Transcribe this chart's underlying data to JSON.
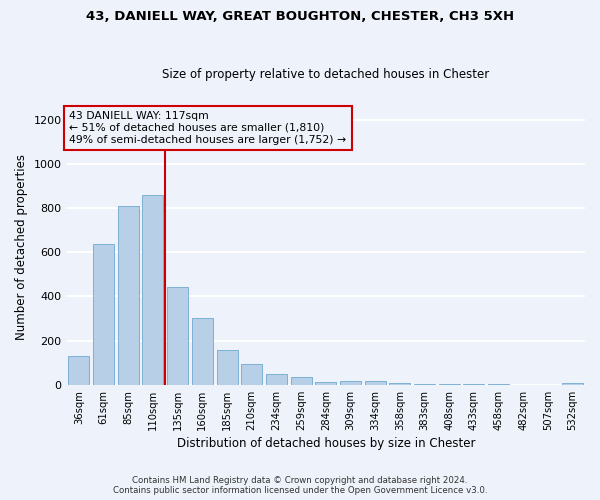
{
  "title_line1": "43, DANIELL WAY, GREAT BOUGHTON, CHESTER, CH3 5XH",
  "title_line2": "Size of property relative to detached houses in Chester",
  "xlabel": "Distribution of detached houses by size in Chester",
  "ylabel": "Number of detached properties",
  "categories": [
    "36sqm",
    "61sqm",
    "85sqm",
    "110sqm",
    "135sqm",
    "160sqm",
    "185sqm",
    "210sqm",
    "234sqm",
    "259sqm",
    "284sqm",
    "309sqm",
    "334sqm",
    "358sqm",
    "383sqm",
    "408sqm",
    "433sqm",
    "458sqm",
    "482sqm",
    "507sqm",
    "532sqm"
  ],
  "values": [
    130,
    635,
    808,
    858,
    443,
    303,
    157,
    95,
    50,
    37,
    14,
    17,
    17,
    8,
    2,
    2,
    2,
    2,
    0,
    0,
    8
  ],
  "bar_color": "#b8cfe8",
  "bar_edge_color": "#6fa8d0",
  "property_bin_index": 3,
  "annotation_line1": "43 DANIELL WAY: 117sqm",
  "annotation_line2": "← 51% of detached houses are smaller (1,810)",
  "annotation_line3": "49% of semi-detached houses are larger (1,752) →",
  "ylim": [
    0,
    1250
  ],
  "yticks": [
    0,
    200,
    400,
    600,
    800,
    1000,
    1200
  ],
  "footer_line1": "Contains HM Land Registry data © Crown copyright and database right 2024.",
  "footer_line2": "Contains public sector information licensed under the Open Government Licence v3.0.",
  "background_color": "#eef2fb",
  "grid_color": "#ffffff",
  "annotation_box_edge": "#cc0000",
  "red_line_color": "#cc0000"
}
